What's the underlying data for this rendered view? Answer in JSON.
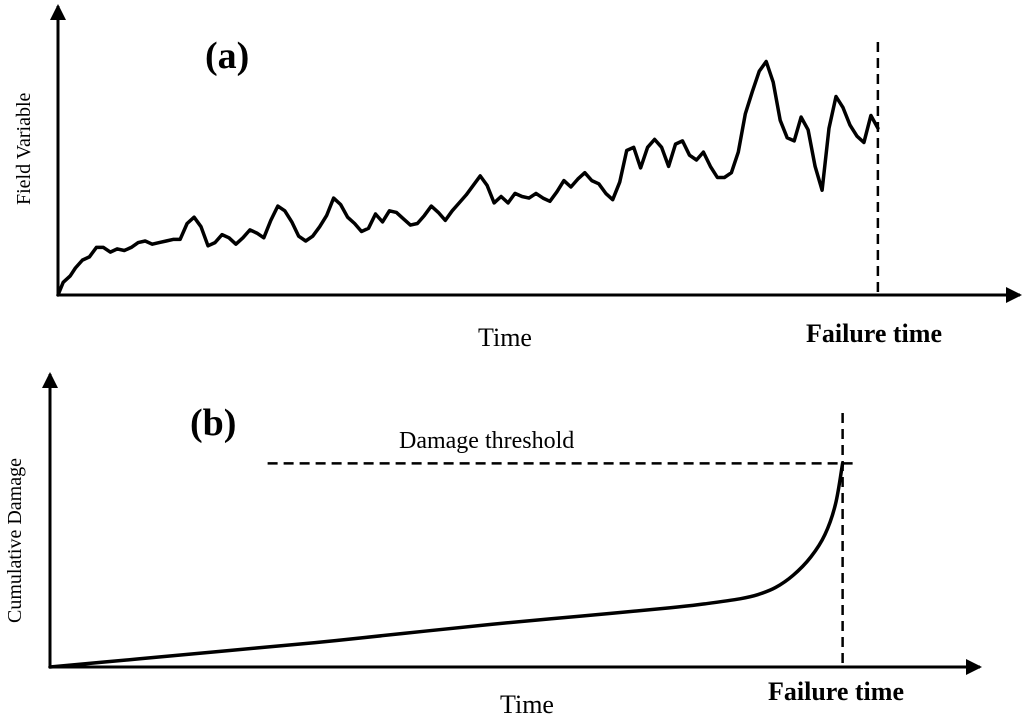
{
  "panel_a": {
    "tag": "(a)",
    "ylabel": "Field Variable",
    "xlabel": "Time",
    "failure_label": "Failure time",
    "signal": [
      [
        0,
        0.0
      ],
      [
        0.3,
        0.08
      ],
      [
        0.7,
        0.12
      ],
      [
        1.0,
        0.17
      ],
      [
        1.4,
        0.22
      ],
      [
        1.8,
        0.24
      ],
      [
        2.2,
        0.3
      ],
      [
        2.6,
        0.3
      ],
      [
        3.0,
        0.27
      ],
      [
        3.4,
        0.29
      ],
      [
        3.8,
        0.28
      ],
      [
        4.2,
        0.3
      ],
      [
        4.6,
        0.33
      ],
      [
        5.0,
        0.34
      ],
      [
        5.4,
        0.32
      ],
      [
        5.8,
        0.33
      ],
      [
        6.2,
        0.34
      ],
      [
        6.6,
        0.35
      ],
      [
        7.0,
        0.35
      ],
      [
        7.4,
        0.45
      ],
      [
        7.8,
        0.49
      ],
      [
        8.2,
        0.43
      ],
      [
        8.6,
        0.31
      ],
      [
        9.0,
        0.33
      ],
      [
        9.4,
        0.38
      ],
      [
        9.8,
        0.36
      ],
      [
        10.2,
        0.32
      ],
      [
        10.6,
        0.36
      ],
      [
        11.0,
        0.41
      ],
      [
        11.4,
        0.39
      ],
      [
        11.8,
        0.36
      ],
      [
        12.2,
        0.47
      ],
      [
        12.6,
        0.56
      ],
      [
        13.0,
        0.53
      ],
      [
        13.4,
        0.46
      ],
      [
        13.8,
        0.37
      ],
      [
        14.2,
        0.34
      ],
      [
        14.6,
        0.37
      ],
      [
        15.0,
        0.43
      ],
      [
        15.4,
        0.5
      ],
      [
        15.8,
        0.61
      ],
      [
        16.2,
        0.57
      ],
      [
        16.6,
        0.49
      ],
      [
        17.0,
        0.45
      ],
      [
        17.4,
        0.4
      ],
      [
        17.8,
        0.42
      ],
      [
        18.2,
        0.51
      ],
      [
        18.6,
        0.46
      ],
      [
        19.0,
        0.53
      ],
      [
        19.4,
        0.52
      ],
      [
        19.8,
        0.48
      ],
      [
        20.2,
        0.44
      ],
      [
        20.6,
        0.45
      ],
      [
        21.0,
        0.5
      ],
      [
        21.4,
        0.56
      ],
      [
        21.8,
        0.52
      ],
      [
        22.2,
        0.47
      ],
      [
        22.6,
        0.53
      ],
      [
        23.0,
        0.58
      ],
      [
        23.4,
        0.63
      ],
      [
        23.8,
        0.69
      ],
      [
        24.2,
        0.75
      ],
      [
        24.6,
        0.69
      ],
      [
        25.0,
        0.58
      ],
      [
        25.4,
        0.62
      ],
      [
        25.8,
        0.58
      ],
      [
        26.2,
        0.64
      ],
      [
        26.6,
        0.62
      ],
      [
        27.0,
        0.61
      ],
      [
        27.4,
        0.64
      ],
      [
        27.8,
        0.61
      ],
      [
        28.2,
        0.59
      ],
      [
        28.6,
        0.65
      ],
      [
        29.0,
        0.72
      ],
      [
        29.4,
        0.68
      ],
      [
        29.8,
        0.73
      ],
      [
        30.2,
        0.77
      ],
      [
        30.6,
        0.72
      ],
      [
        31.0,
        0.7
      ],
      [
        31.4,
        0.64
      ],
      [
        31.8,
        0.6
      ],
      [
        32.2,
        0.71
      ],
      [
        32.6,
        0.91
      ],
      [
        33.0,
        0.93
      ],
      [
        33.4,
        0.8
      ],
      [
        33.8,
        0.93
      ],
      [
        34.2,
        0.98
      ],
      [
        34.6,
        0.93
      ],
      [
        35.0,
        0.81
      ],
      [
        35.4,
        0.95
      ],
      [
        35.8,
        0.97
      ],
      [
        36.2,
        0.88
      ],
      [
        36.6,
        0.85
      ],
      [
        37.0,
        0.9
      ],
      [
        37.4,
        0.81
      ],
      [
        37.8,
        0.74
      ],
      [
        38.2,
        0.74
      ],
      [
        38.6,
        0.77
      ],
      [
        39.0,
        0.9
      ],
      [
        39.4,
        1.14
      ],
      [
        39.8,
        1.28
      ],
      [
        40.2,
        1.41
      ],
      [
        40.6,
        1.47
      ],
      [
        41.0,
        1.34
      ],
      [
        41.4,
        1.1
      ],
      [
        41.8,
        0.99
      ],
      [
        42.2,
        0.97
      ],
      [
        42.6,
        1.12
      ],
      [
        43.0,
        1.04
      ],
      [
        43.4,
        0.81
      ],
      [
        43.8,
        0.66
      ],
      [
        44.2,
        1.05
      ],
      [
        44.6,
        1.25
      ],
      [
        45.0,
        1.18
      ],
      [
        45.4,
        1.07
      ],
      [
        45.8,
        1.0
      ],
      [
        46.2,
        0.96
      ],
      [
        46.6,
        1.13
      ],
      [
        47.0,
        1.05
      ]
    ],
    "ylim": [
      0,
      1.7
    ],
    "xlim": [
      0,
      54
    ],
    "failure_x": 47
  },
  "panel_b": {
    "tag": "(b)",
    "ylabel": "Cumulative Damage",
    "xlabel": "Time",
    "failure_label": "Failure time",
    "threshold_label": "Damage threshold",
    "threshold": 1.0,
    "threshold_start_x": 12.3,
    "xlim": [
      0,
      52
    ],
    "ylim": [
      0,
      1.36
    ],
    "failure_x": 44.8,
    "curve": [
      [
        0,
        0.0
      ],
      [
        5,
        0.04
      ],
      [
        10,
        0.08
      ],
      [
        15,
        0.12
      ],
      [
        20,
        0.165
      ],
      [
        25,
        0.21
      ],
      [
        30,
        0.25
      ],
      [
        35,
        0.29
      ],
      [
        37,
        0.31
      ],
      [
        39,
        0.335
      ],
      [
        40,
        0.355
      ],
      [
        41,
        0.39
      ],
      [
        42,
        0.45
      ],
      [
        43,
        0.54
      ],
      [
        43.8,
        0.65
      ],
      [
        44.4,
        0.8
      ],
      [
        44.8,
        1.0
      ]
    ]
  }
}
